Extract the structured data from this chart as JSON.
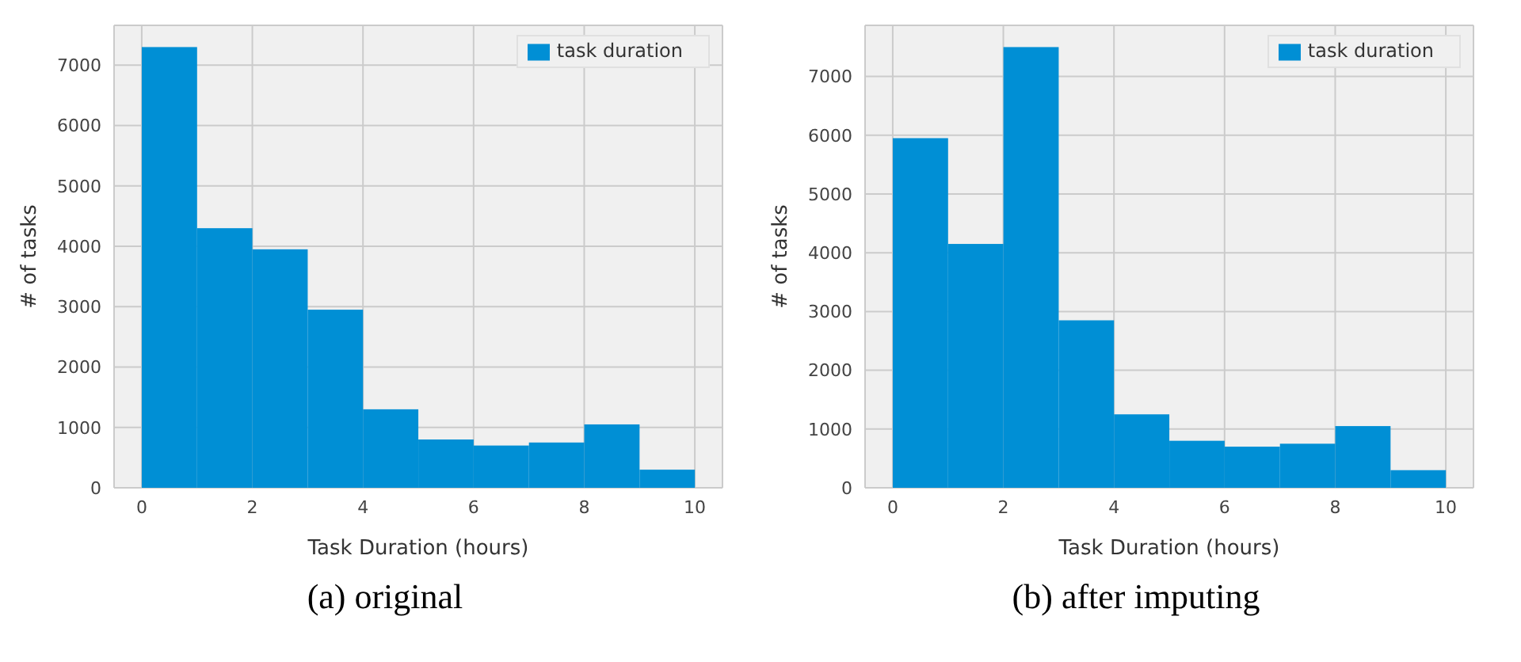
{
  "chart_data": [
    {
      "type": "histogram",
      "title": "(a) original",
      "xlabel": "Task Duration (hours)",
      "ylabel": "# of tasks",
      "bins": [
        0,
        1,
        2,
        3,
        4,
        5,
        6,
        7,
        8,
        9,
        10
      ],
      "series": [
        {
          "name": "task duration",
          "color": "#008fd5",
          "values": [
            7300,
            4300,
            3950,
            2950,
            1300,
            800,
            700,
            750,
            1050,
            300
          ]
        }
      ],
      "xlim": [
        -0.5,
        10.5
      ],
      "xticks": [
        0,
        2,
        4,
        6,
        8,
        10
      ],
      "ylim": [
        0,
        7660
      ],
      "yticks": [
        0,
        1000,
        2000,
        3000,
        4000,
        5000,
        6000,
        7000
      ],
      "grid": true,
      "legend": "top right"
    },
    {
      "type": "histogram",
      "title": "(b) after imputing",
      "xlabel": "Task Duration (hours)",
      "ylabel": "# of tasks",
      "bins": [
        0,
        1,
        2,
        3,
        4,
        5,
        6,
        7,
        8,
        9,
        10
      ],
      "series": [
        {
          "name": "task duration",
          "color": "#008fd5",
          "values": [
            5950,
            4150,
            7500,
            2850,
            1250,
            800,
            700,
            750,
            1050,
            300
          ]
        }
      ],
      "xlim": [
        -0.5,
        10.5
      ],
      "xticks": [
        0,
        2,
        4,
        6,
        8,
        10
      ],
      "ylim": [
        0,
        7870
      ],
      "yticks": [
        0,
        1000,
        2000,
        3000,
        4000,
        5000,
        6000,
        7000
      ],
      "grid": true,
      "legend": "top right"
    }
  ]
}
